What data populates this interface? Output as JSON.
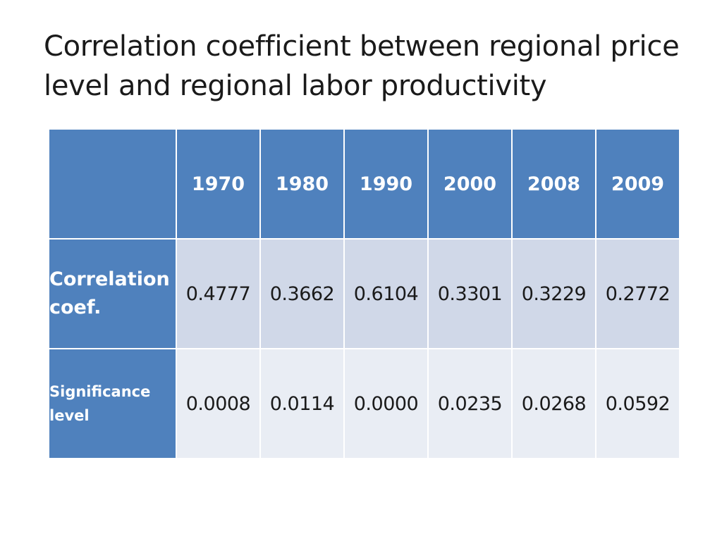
{
  "title": "Correlation coefficient between regional price level and regional labor productivity",
  "table": {
    "columns": [
      "1970",
      "1980",
      "1990",
      "2000",
      "2008",
      "2009"
    ],
    "rows": [
      {
        "label_line1": "Correlation",
        "label_line2": "coef.",
        "values": [
          "0.4777",
          "0.3662",
          "0.6104",
          "0.3301",
          "0.3229",
          "0.2772"
        ]
      },
      {
        "label_line1": "Significance",
        "label_line2": "level",
        "values": [
          "0.0008",
          "0.0114",
          "0.0000",
          "0.0235",
          "0.0268",
          "0.0592"
        ]
      }
    ]
  },
  "colors": {
    "header_blue": "#4f81bd",
    "row_band_dark": "#d0d8e8",
    "row_band_light": "#e9edf4",
    "text": "#1a1a1a"
  }
}
